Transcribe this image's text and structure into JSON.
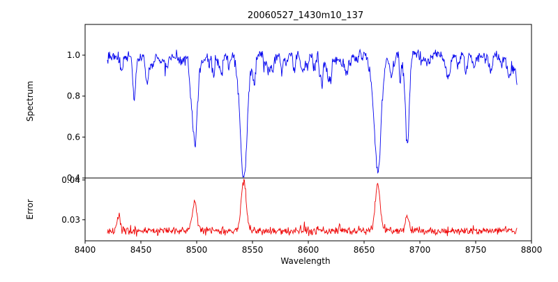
{
  "title": "20060527_1430m10_137",
  "colors": {
    "background": "#ffffff",
    "axis": "#000000",
    "spectrum_line": "#0000ee",
    "error_line": "#ee0000"
  },
  "chart_data": {
    "type": "line",
    "title": "20060527_1430m10_137",
    "xlabel": "Wavelength",
    "xlim": [
      8400,
      8800
    ],
    "x_data_range": [
      8420,
      8787
    ],
    "xticks": [
      8400,
      8450,
      8500,
      8550,
      8600,
      8650,
      8700,
      8750,
      8800
    ],
    "xtick_labels": [
      "8400",
      "8450",
      "8500",
      "8550",
      "8600",
      "8650",
      "8700",
      "8750",
      "8800"
    ],
    "grid": false,
    "legend": "none",
    "panels": [
      {
        "ylabel": "Spectrum",
        "ylim": [
          0.4,
          1.15
        ],
        "yticks": [
          0.4,
          0.6,
          0.8,
          1.0
        ],
        "ytick_labels": [
          "0.4",
          "0.6",
          "0.8",
          "1.0"
        ],
        "series": {
          "name": "spectrum",
          "color": "#0000ee",
          "continuum": 1.0,
          "noise_sigma": 0.013,
          "absorption_lines": [
            {
              "center": 8498.0,
              "depth": 0.4,
              "width": 2.6
            },
            {
              "center": 8542.1,
              "depth": 0.57,
              "width": 3.2
            },
            {
              "center": 8662.1,
              "depth": 0.56,
              "width": 3.0
            },
            {
              "center": 8688.6,
              "depth": 0.26,
              "width": 1.6
            }
          ],
          "weak_line_count": 90,
          "weak_depth_max": 0.14,
          "seed": 20060527
        }
      },
      {
        "ylabel": "Error",
        "ylim": [
          0.0247,
          0.0405
        ],
        "yticks": [
          0.03,
          0.04
        ],
        "ytick_labels": [
          "0.03",
          "0.04"
        ],
        "series": {
          "name": "error",
          "color": "#ee0000",
          "baseline": 0.0272,
          "noise_sigma": 0.0005,
          "peaks": [
            {
              "center": 8430.0,
              "height": 0.004,
              "width": 1.5
            },
            {
              "center": 8498.0,
              "height": 0.0072,
              "width": 2.0
            },
            {
              "center": 8542.1,
              "height": 0.0128,
              "width": 2.2
            },
            {
              "center": 8662.1,
              "height": 0.0118,
              "width": 2.2
            },
            {
              "center": 8688.6,
              "height": 0.004,
              "width": 1.5
            }
          ],
          "seed": 137
        }
      }
    ]
  }
}
